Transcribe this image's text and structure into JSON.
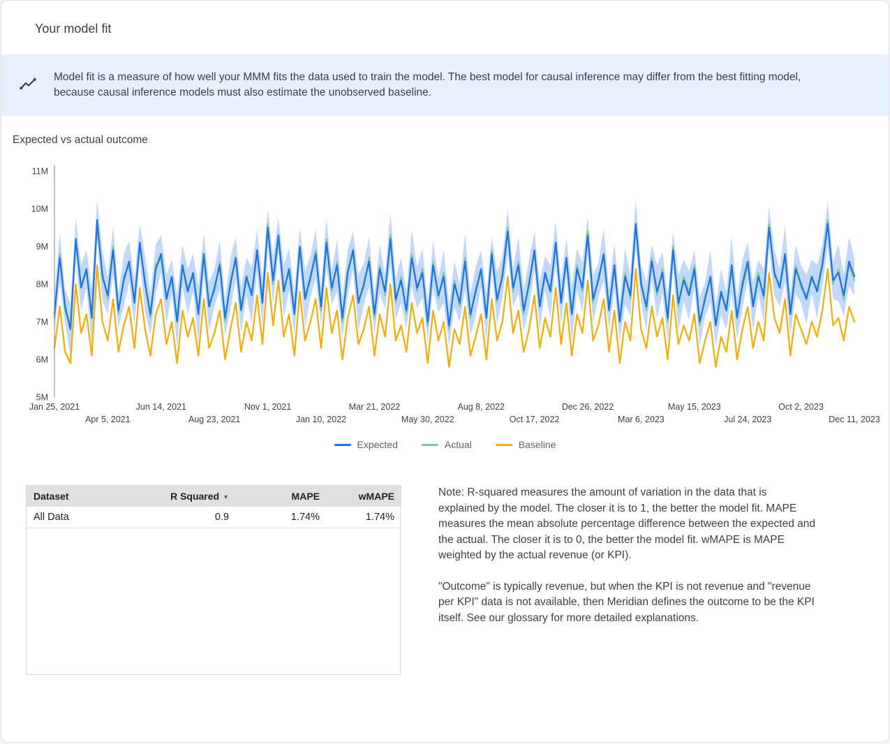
{
  "header": {
    "title": "Your model fit"
  },
  "banner": {
    "icon": "trend-line-icon",
    "bg": "#e8f0fe",
    "text": "Model fit is a measure of how well your MMM fits the data used to train the model. The best model for causal inference may differ from the best fitting model, because causal inference models must also estimate the unobserved baseline."
  },
  "section": {
    "title": "Expected vs actual outcome"
  },
  "chart_data": {
    "type": "line",
    "title": "Expected vs actual outcome",
    "value_unit": "millions",
    "ylim": [
      5,
      11
    ],
    "y_ticks": [
      "11M",
      "10M",
      "9M",
      "8M",
      "7M",
      "6M",
      "5M"
    ],
    "x_ticks": [
      "Jan 25, 2021",
      "Apr 5, 2021",
      "Jun 14, 2021",
      "Aug 23, 2021",
      "Nov 1, 2021",
      "Jan 10, 2022",
      "Mar 21, 2022",
      "May 30, 2022",
      "Aug 8, 2022",
      "Oct 17, 2022",
      "Dec 26, 2022",
      "Mar 6, 2023",
      "May 15, 2023",
      "Jul 24, 2023",
      "Oct 2, 2023",
      "Dec 11, 2023"
    ],
    "x_tick_indices": [
      0,
      10,
      20,
      30,
      40,
      50,
      60,
      70,
      80,
      90,
      100,
      110,
      120,
      130,
      140,
      150
    ],
    "grid": false,
    "legend_position": "bottom",
    "band_color": "#aecbfa",
    "legend": [
      {
        "name": "Expected",
        "color": "#1a73e8"
      },
      {
        "name": "Actual",
        "color": "#81c995"
      },
      {
        "name": "Baseline",
        "color": "#f9ab00"
      }
    ],
    "series": [
      {
        "name": "Expected",
        "color": "#1a73e8",
        "values": [
          7.2,
          8.7,
          7.4,
          6.8,
          9.2,
          7.9,
          8.4,
          7.1,
          9.7,
          8.2,
          7.7,
          8.9,
          7.3,
          8.1,
          8.6,
          7.5,
          9.1,
          8.0,
          7.2,
          8.4,
          8.8,
          7.6,
          8.2,
          7.0,
          8.5,
          7.8,
          8.3,
          7.2,
          8.8,
          7.4,
          7.9,
          8.5,
          7.1,
          8.0,
          8.7,
          7.3,
          8.2,
          7.7,
          8.9,
          7.5,
          9.5,
          8.1,
          9.3,
          7.8,
          8.4,
          7.2,
          9.0,
          7.6,
          8.2,
          8.8,
          7.4,
          9.1,
          7.9,
          8.5,
          7.1,
          8.3,
          8.9,
          7.5,
          8.0,
          8.6,
          7.2,
          8.4,
          7.8,
          9.2,
          7.6,
          8.1,
          7.3,
          8.7,
          7.9,
          8.3,
          7.0,
          8.5,
          7.7,
          8.2,
          6.9,
          8.0,
          7.5,
          8.6,
          7.2,
          7.8,
          8.4,
          7.1,
          8.8,
          7.6,
          8.2,
          9.4,
          7.9,
          8.5,
          7.3,
          8.0,
          8.9,
          7.4,
          8.3,
          7.8,
          9.1,
          7.5,
          8.7,
          7.2,
          8.4,
          7.9,
          9.3,
          7.6,
          8.1,
          8.8,
          7.3,
          8.5,
          7.0,
          8.2,
          7.7,
          9.6,
          8.0,
          7.4,
          8.6,
          7.8,
          8.3,
          7.1,
          8.9,
          7.5,
          8.1,
          7.7,
          8.4,
          7.0,
          7.6,
          8.2,
          6.9,
          7.8,
          7.3,
          8.5,
          7.1,
          8.0,
          8.6,
          7.4,
          8.2,
          7.7,
          9.5,
          8.3,
          7.9,
          8.8,
          7.2,
          8.4,
          8.0,
          7.6,
          8.2,
          7.8,
          8.5,
          9.6,
          8.1,
          8.3,
          7.7,
          8.6,
          8.2
        ]
      },
      {
        "name": "Actual",
        "color": "#81c995",
        "values": [
          7.1,
          8.8,
          7.3,
          6.9,
          9.1,
          8.0,
          8.3,
          7.2,
          9.5,
          8.3,
          7.6,
          9.0,
          7.2,
          8.2,
          8.5,
          7.6,
          9.0,
          8.1,
          7.1,
          8.5,
          8.7,
          7.7,
          8.1,
          7.1,
          8.4,
          7.9,
          8.2,
          7.3,
          8.7,
          7.5,
          7.8,
          8.6,
          7.0,
          8.1,
          8.6,
          7.4,
          8.1,
          7.8,
          8.8,
          7.6,
          9.6,
          8.0,
          9.2,
          7.9,
          8.3,
          7.3,
          8.9,
          7.7,
          8.1,
          8.9,
          7.3,
          9.2,
          7.8,
          8.6,
          7.0,
          8.4,
          8.8,
          7.6,
          7.9,
          8.7,
          7.1,
          8.5,
          7.7,
          9.3,
          7.5,
          8.2,
          7.2,
          8.8,
          7.8,
          8.4,
          6.9,
          8.6,
          7.6,
          8.3,
          6.8,
          8.1,
          7.4,
          8.7,
          7.1,
          7.9,
          8.3,
          7.2,
          8.9,
          7.5,
          8.3,
          9.5,
          7.8,
          8.6,
          7.2,
          8.1,
          8.8,
          7.5,
          8.2,
          7.9,
          9.0,
          7.6,
          8.6,
          7.3,
          8.5,
          7.8,
          9.4,
          7.5,
          8.2,
          8.7,
          7.4,
          8.4,
          7.1,
          8.3,
          7.6,
          9.5,
          8.1,
          7.3,
          8.7,
          7.7,
          8.4,
          7.0,
          9.0,
          7.4,
          8.2,
          7.8,
          8.5,
          6.9,
          7.7,
          8.1,
          7.0,
          7.7,
          7.4,
          8.4,
          7.2,
          7.9,
          8.5,
          7.5,
          8.3,
          7.6,
          9.6,
          8.2,
          8.0,
          8.7,
          7.3,
          8.5,
          7.9,
          7.7,
          8.1,
          7.9,
          8.6,
          9.7,
          8.0,
          8.4,
          7.6,
          8.5,
          8.1
        ]
      },
      {
        "name": "Baseline",
        "color": "#f9ab00",
        "values": [
          6.3,
          7.4,
          6.2,
          5.9,
          8.0,
          6.7,
          7.2,
          6.1,
          8.5,
          7.0,
          6.5,
          7.6,
          6.2,
          6.9,
          7.4,
          6.3,
          7.9,
          6.8,
          6.1,
          7.2,
          7.6,
          6.4,
          7.0,
          5.9,
          7.3,
          6.6,
          7.1,
          6.1,
          7.6,
          6.3,
          6.7,
          7.3,
          6.0,
          6.8,
          7.5,
          6.2,
          7.0,
          6.5,
          7.7,
          6.4,
          8.3,
          6.9,
          8.1,
          6.6,
          7.2,
          6.1,
          7.8,
          6.5,
          7.0,
          7.6,
          6.3,
          7.9,
          6.7,
          7.3,
          6.0,
          7.1,
          7.7,
          6.4,
          6.8,
          7.4,
          6.1,
          7.2,
          6.6,
          8.0,
          6.5,
          6.9,
          6.2,
          7.5,
          6.7,
          7.1,
          5.9,
          7.3,
          6.5,
          7.0,
          5.8,
          6.8,
          6.4,
          7.4,
          6.1,
          6.6,
          7.2,
          6.0,
          7.6,
          6.5,
          7.0,
          8.2,
          6.7,
          7.3,
          6.2,
          6.8,
          7.7,
          6.3,
          7.1,
          6.6,
          7.9,
          6.4,
          7.5,
          6.1,
          7.2,
          6.7,
          8.1,
          6.5,
          6.9,
          7.6,
          6.2,
          7.3,
          5.9,
          7.0,
          6.5,
          8.4,
          6.8,
          6.3,
          7.4,
          6.6,
          7.1,
          6.0,
          7.7,
          6.4,
          6.9,
          6.5,
          7.2,
          5.9,
          6.5,
          7.0,
          5.8,
          6.6,
          6.2,
          7.3,
          6.0,
          6.8,
          7.4,
          6.3,
          7.0,
          6.5,
          8.3,
          7.1,
          6.7,
          7.6,
          6.1,
          7.2,
          6.8,
          6.4,
          7.0,
          6.6,
          7.3,
          8.4,
          6.9,
          7.1,
          6.5,
          7.4,
          7.0
        ]
      }
    ],
    "ci_halfwidth": [
      0.5,
      0.65,
      0.45,
      0.7,
      0.55,
      0.6,
      0.5,
      0.75,
      0.55,
      0.65,
      0.5,
      0.65,
      0.45,
      0.7,
      0.55,
      0.6,
      0.5,
      0.75,
      0.55,
      0.65,
      0.5,
      0.65,
      0.45,
      0.7,
      0.55,
      0.6,
      0.5,
      0.75,
      0.55,
      0.65,
      0.5,
      0.65,
      0.45,
      0.7,
      0.55,
      0.6,
      0.5,
      0.75,
      0.55,
      0.65,
      0.5,
      0.65,
      0.45,
      0.7,
      0.55,
      0.6,
      0.5,
      0.75,
      0.55,
      0.65,
      0.5,
      0.65,
      0.45,
      0.7,
      0.55,
      0.6,
      0.5,
      0.75,
      0.55,
      0.65,
      0.5,
      0.65,
      0.45,
      0.7,
      0.55,
      0.6,
      0.5,
      0.75,
      0.55,
      0.65,
      0.5,
      0.65,
      0.45,
      0.7,
      0.55,
      0.6,
      0.5,
      0.75,
      0.55,
      0.65,
      0.5,
      0.65,
      0.45,
      0.7,
      0.55,
      0.6,
      0.5,
      0.75,
      0.55,
      0.65,
      0.5,
      0.65,
      0.45,
      0.7,
      0.55,
      0.6,
      0.5,
      0.75,
      0.55,
      0.65,
      0.5,
      0.65,
      0.45,
      0.7,
      0.55,
      0.6,
      0.5,
      0.75,
      0.55,
      0.65,
      0.5,
      0.65,
      0.45,
      0.7,
      0.55,
      0.6,
      0.5,
      0.75,
      0.55,
      0.65,
      0.5,
      0.65,
      0.45,
      0.7,
      0.55,
      0.6,
      0.5,
      0.75,
      0.55,
      0.65,
      0.5,
      0.65,
      0.45,
      0.7,
      0.55,
      0.6,
      0.5,
      0.75,
      0.55,
      0.65,
      0.5,
      0.65,
      0.45,
      0.7,
      0.55,
      0.6,
      0.5,
      0.75,
      0.55,
      0.65,
      0.5
    ]
  },
  "table": {
    "headers": [
      "Dataset",
      "R Squared",
      "MAPE",
      "wMAPE"
    ],
    "sort_column": "R Squared",
    "sort_icon": "▼",
    "rows": [
      [
        "All Data",
        "0.9",
        "1.74%",
        "1.74%"
      ]
    ]
  },
  "notes": {
    "p1": "Note: R-squared measures the amount of variation in the data that is explained by the model. The closer it is to 1, the better the model fit. MAPE measures the mean absolute percentage difference between the expected and the actual. The closer it is to 0, the better the model fit. wMAPE is MAPE weighted by the actual revenue (or KPI).",
    "p2": "\"Outcome\" is typically revenue, but when the KPI is not revenue and \"revenue per KPI\" data is not available, then Meridian defines the outcome to be the KPI itself. See our glossary for more detailed explanations."
  }
}
